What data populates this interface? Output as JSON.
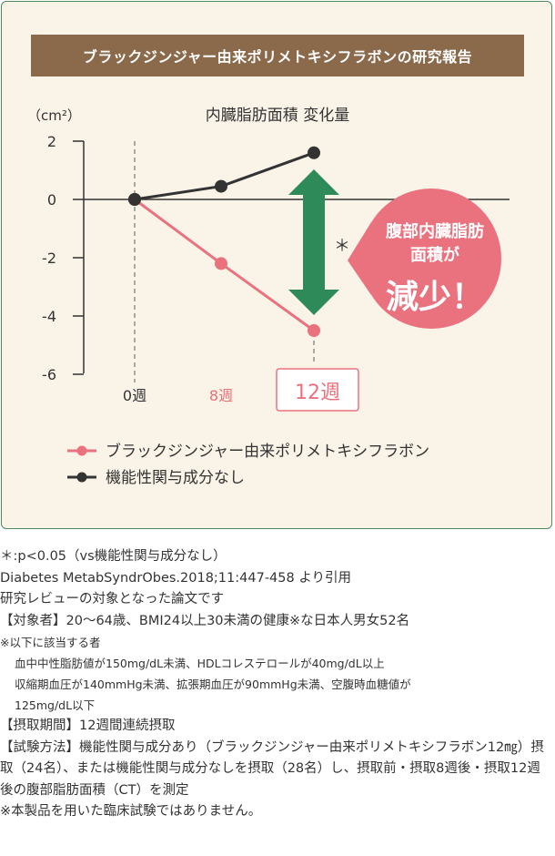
{
  "header": {
    "title": "ブラックジンジャー由来ポリメトキシフラボンの研究報告"
  },
  "colors": {
    "series_a": "#e9727e",
    "series_b": "#333333",
    "arrow": "#2e8a58",
    "badge": "#e9727e",
    "banner": "#8a6a4b",
    "frame": "#4e8a5d"
  },
  "chart_data": {
    "type": "line",
    "title": "内臓脂肪面積 変化量",
    "unit_label": "（cm²）",
    "x": [
      "0週",
      "8週",
      "12週"
    ],
    "ylim": [
      -6,
      2
    ],
    "yticks": [
      "2",
      "0",
      "-2",
      "-4",
      "-6"
    ],
    "series": [
      {
        "name": "ブラックジンジャー由来ポリメトキシフラボン",
        "values": [
          0,
          -2.2,
          -4.5
        ]
      },
      {
        "name": "機能性関与成分なし",
        "values": [
          0,
          0.45,
          1.6
        ]
      }
    ],
    "significance_mark": "＊",
    "badge": {
      "line1": "腹部内臓脂肪",
      "line2": "面積が",
      "line3": "減少！"
    }
  },
  "notes": {
    "sig": "＊:p<0.05（vs機能性関与成分なし）",
    "source": "Diabetes MetabSyndrObes.2018;11:447-458 より引用",
    "review": "研究レビューの対象となった論文です",
    "subjects": "【対象者】20～64歳、BMI24以上30未満の健康※な日本人男女52名",
    "criteria_head": "※以下に該当する者",
    "criteria_1": "血中中性脂肪値が150mg/dL未満、HDLコレステロールが40mg/dL以上",
    "criteria_2": "収縮期血圧が140mmHg未満、拡張期血圧が90mmHg未満、空腹時血糖値が",
    "criteria_3": "125mg/dL以下",
    "period": "【摂取期間】12週間連続摂取",
    "method": "【試験方法】機能性関与成分あり（ブラックジンジャー由来ポリメトキシフラボン12㎎）摂取（24名）、または機能性関与成分なしを摂取（28名）し、摂取前・摂取8週後・摂取12週後の腹部脂肪面積（CT）を測定",
    "disclaimer": "※本製品を用いた臨床試験ではありません。"
  }
}
